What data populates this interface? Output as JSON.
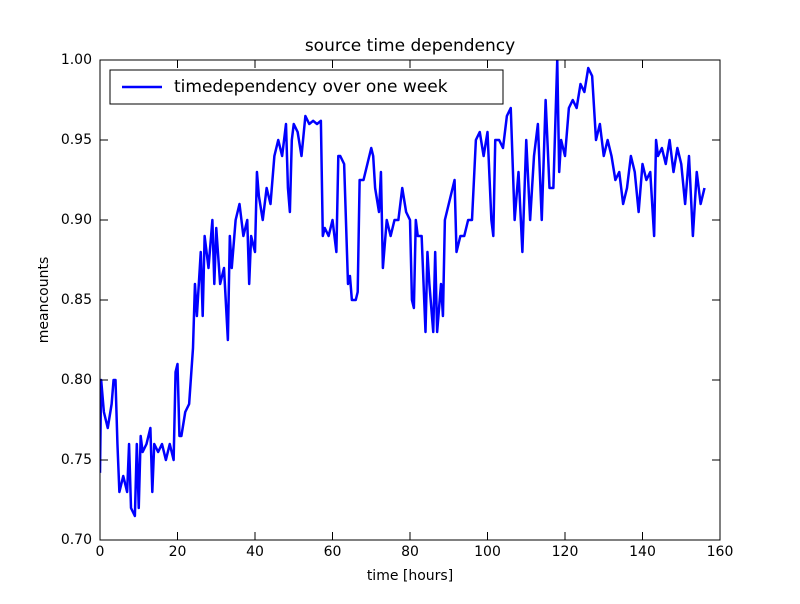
{
  "chart_data": {
    "type": "line",
    "title": "source time dependency",
    "x_label": "time [hours]",
    "y_label": "meancounts",
    "x": [
      0,
      0.3,
      1,
      2,
      3,
      3.5,
      4,
      4.5,
      5,
      6,
      7,
      7.5,
      8,
      9,
      9.5,
      10,
      10.5,
      11,
      12,
      13,
      13.5,
      14,
      15,
      16,
      17,
      18,
      19,
      19.5,
      20,
      20.5,
      21,
      22,
      23,
      24,
      24.5,
      25,
      26,
      26.5,
      27,
      28,
      29,
      29.5,
      30,
      31,
      32,
      33,
      33.5,
      34,
      35,
      36,
      37,
      38,
      38.5,
      39,
      40,
      40.5,
      41,
      42,
      43,
      44,
      45,
      46,
      47,
      48,
      48.5,
      49,
      49.5,
      50,
      51,
      52,
      53,
      54,
      55,
      56,
      57,
      57.5,
      58,
      59,
      60,
      61,
      61.5,
      62,
      63,
      64,
      64.5,
      65,
      66,
      66.5,
      67,
      68,
      69,
      70,
      70.5,
      71,
      72,
      72.5,
      73,
      74,
      75,
      76,
      77,
      78,
      79,
      80,
      80.5,
      81,
      81.5,
      82,
      83,
      84,
      84.5,
      85,
      86,
      86.5,
      87,
      88,
      88.5,
      89,
      90,
      91,
      91.5,
      92,
      93,
      94,
      95,
      96,
      97,
      98,
      99,
      100,
      101,
      101.5,
      102,
      103,
      104,
      105,
      106,
      107,
      108,
      109,
      110,
      111,
      112,
      113,
      114,
      115,
      116,
      117,
      117.5,
      118,
      118.5,
      119,
      120,
      121,
      122,
      123,
      124,
      125,
      126,
      127,
      128,
      129,
      130,
      131,
      132,
      133,
      134,
      135,
      136,
      137,
      138,
      139,
      140,
      141,
      142,
      143,
      143.5,
      144,
      145,
      146,
      147,
      148,
      149,
      150,
      151,
      152,
      153,
      154,
      155,
      156
    ],
    "series": [
      {
        "name": "timedependency over one week",
        "color": "#0000ff",
        "values": [
          0.742,
          0.8,
          0.78,
          0.77,
          0.785,
          0.8,
          0.8,
          0.76,
          0.73,
          0.74,
          0.73,
          0.76,
          0.72,
          0.715,
          0.76,
          0.72,
          0.765,
          0.755,
          0.76,
          0.77,
          0.73,
          0.76,
          0.755,
          0.76,
          0.75,
          0.76,
          0.75,
          0.805,
          0.81,
          0.765,
          0.765,
          0.78,
          0.785,
          0.82,
          0.86,
          0.84,
          0.88,
          0.84,
          0.89,
          0.87,
          0.9,
          0.86,
          0.895,
          0.86,
          0.87,
          0.825,
          0.89,
          0.87,
          0.9,
          0.91,
          0.89,
          0.9,
          0.86,
          0.89,
          0.88,
          0.93,
          0.915,
          0.9,
          0.92,
          0.91,
          0.94,
          0.95,
          0.94,
          0.96,
          0.92,
          0.905,
          0.95,
          0.96,
          0.955,
          0.94,
          0.965,
          0.96,
          0.962,
          0.96,
          0.962,
          0.89,
          0.895,
          0.89,
          0.9,
          0.88,
          0.94,
          0.94,
          0.935,
          0.86,
          0.865,
          0.85,
          0.85,
          0.855,
          0.925,
          0.925,
          0.935,
          0.945,
          0.94,
          0.92,
          0.905,
          0.93,
          0.87,
          0.9,
          0.89,
          0.9,
          0.9,
          0.92,
          0.905,
          0.9,
          0.85,
          0.845,
          0.9,
          0.89,
          0.89,
          0.83,
          0.88,
          0.86,
          0.83,
          0.88,
          0.83,
          0.86,
          0.84,
          0.9,
          0.91,
          0.92,
          0.925,
          0.88,
          0.89,
          0.89,
          0.9,
          0.9,
          0.95,
          0.955,
          0.94,
          0.955,
          0.9,
          0.89,
          0.95,
          0.95,
          0.945,
          0.965,
          0.97,
          0.9,
          0.93,
          0.88,
          0.95,
          0.9,
          0.94,
          0.96,
          0.9,
          0.975,
          0.92,
          0.92,
          0.96,
          1.0,
          0.93,
          0.95,
          0.94,
          0.97,
          0.975,
          0.97,
          0.985,
          0.98,
          0.995,
          0.99,
          0.95,
          0.96,
          0.94,
          0.95,
          0.94,
          0.925,
          0.93,
          0.91,
          0.92,
          0.94,
          0.93,
          0.905,
          0.935,
          0.925,
          0.93,
          0.89,
          0.95,
          0.94,
          0.945,
          0.935,
          0.95,
          0.93,
          0.945,
          0.935,
          0.91,
          0.94,
          0.89,
          0.93,
          0.91,
          0.92
        ]
      }
    ],
    "xlim": [
      0,
      160
    ],
    "ylim": [
      0.7,
      1.0
    ],
    "xticks": [
      0,
      20,
      40,
      60,
      80,
      100,
      120,
      140,
      160
    ],
    "yticks": [
      {
        "value": 0.7,
        "label": "0.70"
      },
      {
        "value": 0.75,
        "label": "0.75"
      },
      {
        "value": 0.8,
        "label": "0.80"
      },
      {
        "value": 0.85,
        "label": "0.85"
      },
      {
        "value": 0.9,
        "label": "0.90"
      },
      {
        "value": 0.95,
        "label": "0.95"
      },
      {
        "value": 1.0,
        "label": "1.00"
      }
    ],
    "legend": "upper left"
  }
}
